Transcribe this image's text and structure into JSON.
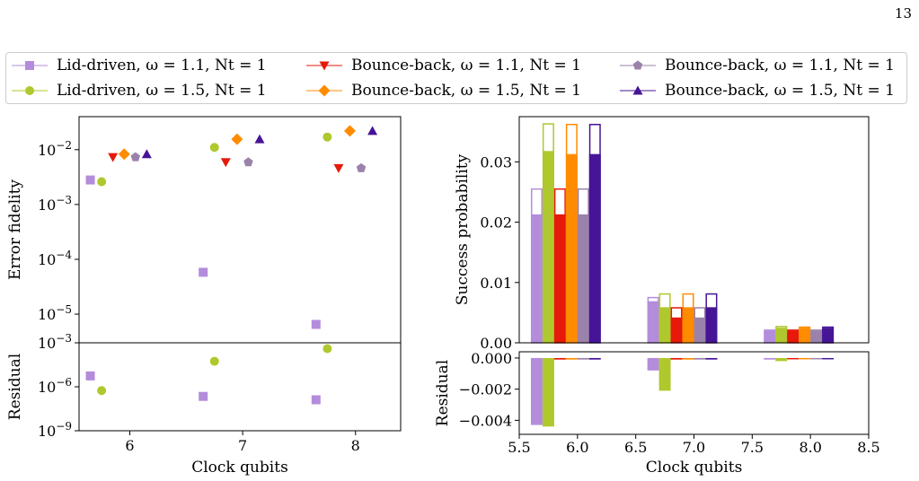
{
  "page_number": "13",
  "legend_entries": [
    {
      "label": "Lid-driven, ω = 1.1, Nt = 1",
      "color": "#b48cdc",
      "marker": "square"
    },
    {
      "label": "Lid-driven, ω = 1.5, Nt = 1",
      "color": "#afc82d",
      "marker": "circle"
    },
    {
      "label": "Bounce-back, ω = 1.1, Nt = 1",
      "color": "#e6190a",
      "marker": "triangle-down"
    },
    {
      "label": "Bounce-back, ω = 1.5, Nt = 1",
      "color": "#ff8c00",
      "marker": "diamond"
    },
    {
      "label": "Bounce-back, ω = 1.1, Nt = 1",
      "color": "#9b82aa",
      "marker": "pentagon"
    },
    {
      "label": "Bounce-back, ω = 1.5, Nt = 1",
      "color": "#461496",
      "marker": "triangle-up"
    }
  ],
  "chart_data": [
    {
      "type": "scatter",
      "name": "error-fidelity",
      "ylabel": "Error fidelity",
      "yscale": "log",
      "ylim": [
        3e-06,
        0.04
      ],
      "xlim": [
        5.55,
        8.4
      ],
      "yticks": [
        "10^{-5}",
        "10^{-4}",
        "10^{-3}",
        "10^{-2}"
      ],
      "grid": false,
      "series": [
        {
          "name": "Lid-driven, ω = 1.1, Nt = 1",
          "x": [
            5.65,
            6.65,
            7.65
          ],
          "y": [
            0.0028,
            5.8e-05,
            6.5e-06
          ]
        },
        {
          "name": "Lid-driven, ω = 1.5, Nt = 1",
          "x": [
            5.75,
            6.75,
            7.75
          ],
          "y": [
            0.0026,
            0.011,
            0.017
          ]
        },
        {
          "name": "Bounce-back, ω = 1.1, Nt = 1",
          "x": [
            5.85,
            6.85,
            7.85
          ],
          "y": [
            0.0073,
            0.0059,
            0.0046
          ]
        },
        {
          "name": "Bounce-back, ω = 1.5, Nt = 1",
          "x": [
            5.95,
            6.95,
            7.95
          ],
          "y": [
            0.0083,
            0.0155,
            0.022
          ]
        },
        {
          "name": "Bounce-back, ω = 1.1, Nt = 1",
          "x": [
            6.05,
            7.05,
            8.05
          ],
          "y": [
            0.0073,
            0.0059,
            0.0046
          ]
        },
        {
          "name": "Bounce-back, ω = 1.5, Nt = 1",
          "x": [
            6.15,
            7.15,
            8.15
          ],
          "y": [
            0.0083,
            0.0155,
            0.022
          ]
        }
      ]
    },
    {
      "type": "scatter",
      "name": "error-fidelity-residual",
      "ylabel": "Residual",
      "xlabel": "Clock qubits",
      "yscale": "log",
      "ylim": [
        1e-09,
        0.001
      ],
      "xlim": [
        5.55,
        8.4
      ],
      "yticks": [
        "10^{-9}",
        "10^{-6}",
        "10^{-3}"
      ],
      "xticks": [
        "6",
        "7",
        "8"
      ],
      "series": [
        {
          "name": "Lid-driven, ω = 1.1, Nt = 1",
          "x": [
            5.65,
            6.65,
            7.65
          ],
          "y": [
            5.5e-06,
            2.2e-07,
            1.3e-07
          ]
        },
        {
          "name": "Lid-driven, ω = 1.5, Nt = 1",
          "x": [
            5.75,
            6.75,
            7.75
          ],
          "y": [
            5.5e-07,
            5.5e-05,
            0.0004
          ]
        }
      ]
    },
    {
      "type": "bar",
      "name": "success-probability",
      "ylabel": "Success probability",
      "ylim": [
        0,
        0.0375
      ],
      "xlim": [
        5.5,
        8.5
      ],
      "yticks": [
        "0.00",
        "0.01",
        "0.02",
        "0.03"
      ],
      "bar_width": 0.1,
      "series": [
        {
          "name": "Lid-driven, ω = 1.1, Nt = 1",
          "x": [
            5.65,
            6.65,
            7.65
          ],
          "values": [
            0.0213,
            0.0069,
            0.002
          ],
          "outline": [
            0.0255,
            0.0075,
            0.0021
          ]
        },
        {
          "name": "Lid-driven, ω = 1.5, Nt = 1",
          "x": [
            5.75,
            6.75,
            7.75
          ],
          "values": [
            0.0318,
            0.0059,
            0.0025
          ],
          "outline": [
            0.0363,
            0.0081,
            0.0027
          ]
        },
        {
          "name": "Bounce-back, ω = 1.1, Nt = 1",
          "x": [
            5.85,
            6.85,
            7.85
          ],
          "values": [
            0.0213,
            0.0042,
            0.002
          ],
          "outline": [
            0.0255,
            0.0058,
            0.0021
          ]
        },
        {
          "name": "Bounce-back, ω = 1.5, Nt = 1",
          "x": [
            5.95,
            6.95,
            7.95
          ],
          "values": [
            0.0313,
            0.0059,
            0.0025
          ],
          "outline": [
            0.0362,
            0.0081,
            0.0026
          ]
        },
        {
          "name": "Bounce-back, ω = 1.1, Nt = 1",
          "x": [
            6.05,
            7.05,
            8.05
          ],
          "values": [
            0.0213,
            0.0042,
            0.002
          ],
          "outline": [
            0.0255,
            0.0058,
            0.0021
          ]
        },
        {
          "name": "Bounce-back, ω = 1.5, Nt = 1",
          "x": [
            6.15,
            7.15,
            8.15
          ],
          "values": [
            0.0313,
            0.0059,
            0.0025
          ],
          "outline": [
            0.0362,
            0.0081,
            0.0026
          ]
        }
      ]
    },
    {
      "type": "bar",
      "name": "success-probability-residual",
      "ylabel": "Residual",
      "xlabel": "Clock qubits",
      "ylim": [
        -0.0049,
        0.0004
      ],
      "xlim": [
        5.5,
        8.5
      ],
      "yticks": [
        "−0.004",
        "−0.002",
        "0.000"
      ],
      "xticks": [
        "5.5",
        "6.0",
        "6.5",
        "7.0",
        "7.5",
        "8.0",
        "8.5"
      ],
      "bar_width": 0.1,
      "series": [
        {
          "name": "Lid-driven, ω = 1.1, Nt = 1",
          "x": [
            5.65,
            6.65,
            7.65
          ],
          "values": [
            -0.0043,
            -0.0008,
            -0.0001
          ]
        },
        {
          "name": "Lid-driven, ω = 1.5, Nt = 1",
          "x": [
            5.75,
            6.75,
            7.75
          ],
          "values": [
            -0.0044,
            -0.0021,
            -0.0002
          ]
        },
        {
          "name": "Bounce-back, ω = 1.1, Nt = 1",
          "x": [
            5.85,
            6.85,
            7.85
          ],
          "values": [
            -0.0001,
            -0.0001,
            -5e-05
          ]
        },
        {
          "name": "Bounce-back, ω = 1.5, Nt = 1",
          "x": [
            5.95,
            6.95,
            7.95
          ],
          "values": [
            -0.0001,
            -0.0001,
            -5e-05
          ]
        },
        {
          "name": "Bounce-back, ω = 1.1, Nt = 1",
          "x": [
            6.05,
            7.05,
            8.05
          ],
          "values": [
            -0.0001,
            -0.0001,
            -5e-05
          ]
        },
        {
          "name": "Bounce-back, ω = 1.5, Nt = 1",
          "x": [
            6.15,
            7.15,
            8.15
          ],
          "values": [
            -0.0001,
            -0.0001,
            -5e-05
          ]
        }
      ]
    }
  ]
}
